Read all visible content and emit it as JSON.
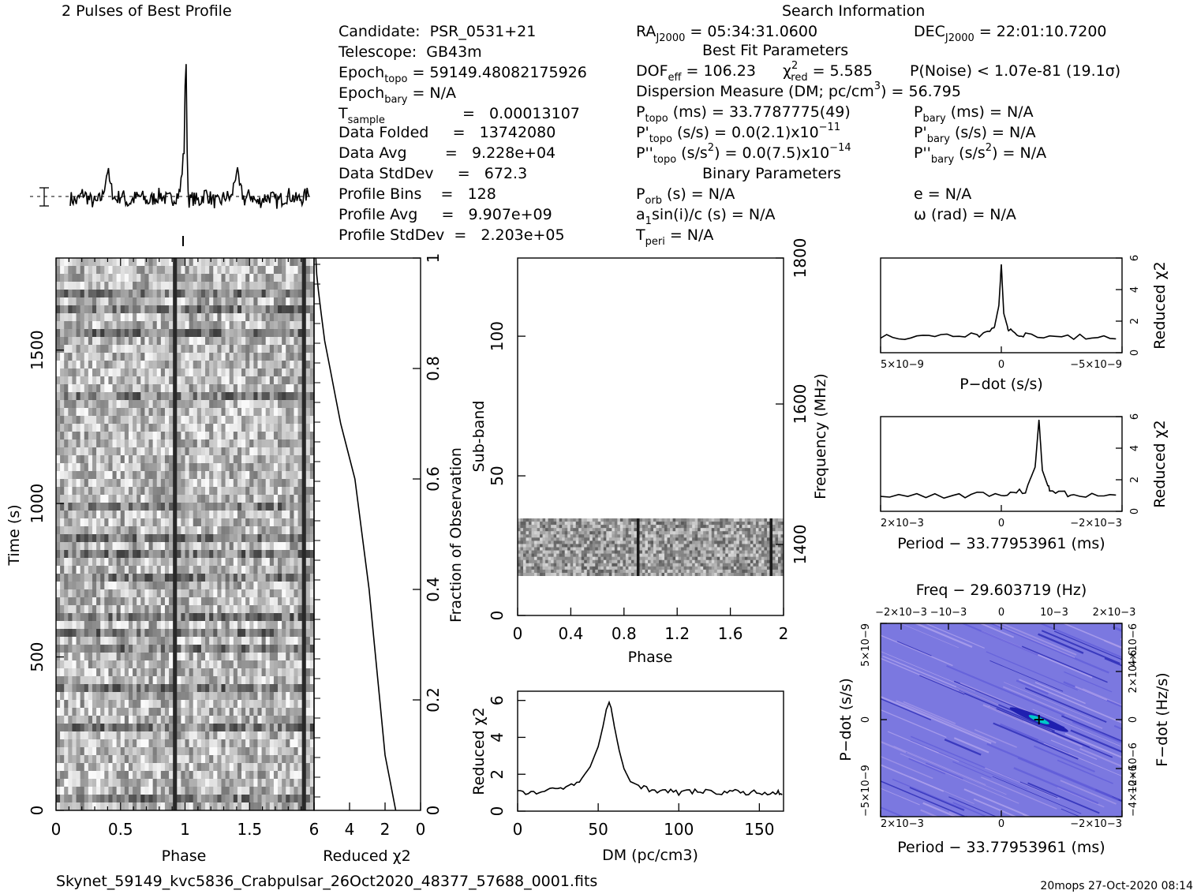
{
  "header": {
    "left_title": "2 Pulses of Best Profile",
    "right_title": "Search Information"
  },
  "info": {
    "candidate": "Candidate:  PSR_0531+21",
    "telescope": "Telescope:  GB43m",
    "epoch_topo_label": "Epoch",
    "epoch_topo_sub": "topo",
    "epoch_topo_value": "= 59149.48082175926",
    "epoch_bary_label": "Epoch",
    "epoch_bary_sub": "bary",
    "epoch_bary_value": "= N/A",
    "t_sample_label": "T",
    "t_sample_sub": "sample",
    "t_sample_value": "=   0.00013107",
    "data_folded": "Data Folded     =   13742080",
    "data_avg": "Data Avg        =   9.228e+04",
    "data_stddev": "Data StdDev     =   672.3",
    "profile_bins": "Profile Bins    =   128",
    "profile_avg": "Profile Avg     =   9.907e+09",
    "profile_stddev": "Profile StdDev  =   2.203e+05",
    "ra_label": "RA",
    "ra_sub": "J2000",
    "ra_value": "= 05:34:31.0600",
    "dec_label": "DEC",
    "dec_sub": "J2000",
    "dec_value": "= 22:01:10.7200",
    "best_fit": "Best Fit Parameters",
    "dof_label": "DOF",
    "dof_sub": "eff",
    "dof_value": "= 106.23",
    "chi_label": "χ",
    "chi_sup": "2",
    "chi_sub": "red",
    "chi_value": "= 5.585",
    "pnoise": "P(Noise) < 1.07e-81   (19.1σ)",
    "dm": "Dispersion Measure (DM; pc/cm",
    "dm_sup": "3",
    "dm_value": ") = 56.795",
    "ptopo_label": "P",
    "ptopo_sub": "topo",
    "ptopo_value": "(ms) =  33.7787775(49)",
    "pbary_label": "P",
    "pbary_sub": "bary",
    "pbary_value": "(ms) = N/A",
    "pdtopo_label": "P'",
    "pdtopo_sub": "topo",
    "pdtopo_value": "(s/s) = 0.0(2.1)x10",
    "pdtopo_exp": "−11",
    "pdbary_label": "P'",
    "pdbary_sub": "bary",
    "pdbary_value": "(s/s) = N/A",
    "pddtopo_label": "P''",
    "pddtopo_sub": "topo",
    "pddtopo_value": "(s/s",
    "pddtopo_sup": "2",
    "pddtopo_value2": ") = 0.0(7.5)x10",
    "pddtopo_exp": "−14",
    "pddbary_label": "P''",
    "pddbary_sub": "bary",
    "pddbary_value": "(s/s",
    "pddbary_sup": "2",
    "pddbary_value2": ") = N/A",
    "binary": "Binary Parameters",
    "porb_label": "P",
    "porb_sub": "orb",
    "porb_value": "(s) = N/A",
    "ecc": "e = N/A",
    "a1_label": "a",
    "a1_sub": "1",
    "a1_value": "sin(i)/c (s) = N/A",
    "omega": "ω (rad) = N/A",
    "tperi_label": "T",
    "tperi_sub": "peri",
    "tperi_value": "= N/A"
  },
  "footer": {
    "filename": "Skynet_59149_kvc5836_Crabpulsar_26Oct2020_48377_57688_0001.fits",
    "stamp": "20mops 27-Oct-2020 08:14"
  },
  "colors": {
    "ink": "#000000",
    "pdot_map": "#7b78e0",
    "pdot_map_dark": "#1f1fb0",
    "pdot_map_light": "#b7a8ee"
  },
  "chart_data": [
    {
      "type": "line",
      "title": "2 Pulses of Best Profile",
      "x": [
        0.0,
        0.05,
        0.1,
        0.15,
        0.2,
        0.25,
        0.29,
        0.31,
        0.35,
        0.4,
        0.45,
        0.5,
        0.55,
        0.6,
        0.65,
        0.7,
        0.75,
        0.8,
        0.85,
        0.885,
        0.895,
        0.905,
        0.915,
        0.925,
        0.95,
        1.0,
        1.05,
        1.1,
        1.15,
        1.2,
        1.25,
        1.29,
        1.31,
        1.35,
        1.4,
        1.45,
        1.5,
        1.55,
        1.6,
        1.65,
        1.7,
        1.75,
        1.8,
        1.85,
        1.885,
        1.895,
        1.905,
        1.915,
        1.925,
        1.95,
        2.0
      ],
      "values": [
        0.05,
        0.03,
        0.08,
        0.04,
        0.02,
        0.06,
        0.22,
        0.12,
        0.04,
        0.07,
        0.02,
        0.05,
        0.06,
        0.03,
        0.05,
        0.07,
        0.04,
        0.05,
        0.08,
        0.35,
        1.0,
        0.4,
        0.06,
        0.03,
        0.05,
        0.03,
        0.08,
        0.04,
        0.02,
        0.06,
        0.05,
        0.22,
        0.12,
        0.04,
        0.07,
        0.02,
        0.05,
        0.06,
        0.03,
        0.05,
        0.07,
        0.04,
        0.05,
        0.08,
        0.35,
        1.0,
        0.4,
        0.06,
        0.03,
        0.05,
        0.03
      ],
      "xlim": [
        0,
        2
      ]
    },
    {
      "type": "heatmap",
      "xlabel": "Phase",
      "ylabel": "Time (s)",
      "x_ticks": [
        "0",
        "0.5",
        "1",
        "1.5"
      ],
      "y_ticks": [
        "0",
        "500",
        "1000",
        "1500"
      ],
      "xlim": [
        0,
        2
      ],
      "ylim": [
        0,
        1800
      ],
      "pulse_phase": [
        0.9,
        1.9
      ]
    },
    {
      "type": "line",
      "xlabel": "Reduced χ2",
      "ylabel": "Fraction of Observation",
      "x_ticks": [
        "6",
        "4",
        "2",
        "0"
      ],
      "y_ticks": [
        "0.2",
        "0.4",
        "0.6",
        "0.8",
        "1"
      ],
      "xlim": [
        6,
        0
      ],
      "ylim": [
        0,
        1
      ],
      "x": [
        1.4,
        1.7,
        2.0,
        2.3,
        2.6,
        2.9,
        3.3,
        3.7,
        4.1,
        4.5,
        4.8,
        5.1,
        5.4,
        5.6,
        5.75,
        5.85,
        5.9
      ],
      "y": [
        0.0,
        0.05,
        0.1,
        0.2,
        0.3,
        0.4,
        0.5,
        0.6,
        0.65,
        0.7,
        0.75,
        0.8,
        0.85,
        0.9,
        0.94,
        0.97,
        1.0
      ]
    },
    {
      "type": "heatmap",
      "xlabel": "Phase",
      "ylabel": "Sub-band",
      "y2label": "Frequency (MHz)",
      "x_ticks": [
        "0",
        "0.4",
        "0.8",
        "1.2",
        "1.6",
        "2"
      ],
      "y_ticks": [
        "0",
        "50",
        "100"
      ],
      "y2_ticks": [
        "1400",
        "1600",
        "1800"
      ],
      "xlim": [
        0,
        2
      ],
      "ylim": [
        0,
        128
      ],
      "band_subbands": [
        14,
        35
      ],
      "pulse_phase": [
        0.9,
        1.9
      ]
    },
    {
      "type": "line",
      "xlabel": "DM (pc/cm3)",
      "ylabel": "Reduced χ2",
      "x_ticks": [
        "0",
        "50",
        "100",
        "150"
      ],
      "y_ticks": [
        "0",
        "2",
        "4",
        "6"
      ],
      "xlim": [
        0,
        165
      ],
      "ylim": [
        0,
        6.5
      ],
      "x": [
        0,
        10,
        20,
        30,
        40,
        45,
        50,
        53,
        55,
        56.8,
        58,
        60,
        63,
        66,
        70,
        80,
        90,
        100,
        110,
        120,
        130,
        140,
        150,
        160,
        165
      ],
      "y": [
        1.0,
        1.0,
        1.1,
        1.3,
        1.8,
        2.4,
        3.5,
        4.6,
        5.5,
        5.9,
        5.6,
        4.6,
        3.3,
        2.3,
        1.6,
        1.2,
        1.1,
        1.0,
        1.1,
        1.0,
        1.05,
        1.0,
        1.0,
        1.0,
        1.0
      ]
    },
    {
      "type": "line",
      "xlabel": "P−dot (s/s)",
      "ylabel": "Reduced χ2",
      "x_ticks": [
        "5×10−9",
        "0",
        "−5×10−9"
      ],
      "y_ticks": [
        "0",
        "2",
        "4",
        "6"
      ],
      "xlim": [
        5e-09,
        -5e-09
      ],
      "ylim": [
        0,
        6
      ],
      "x": [
        5e-09,
        3e-09,
        1e-09,
        3e-10,
        1e-10,
        0,
        -1e-10,
        -3e-10,
        -1e-09,
        -3e-09,
        -5e-09
      ],
      "y": [
        1.0,
        1.0,
        1.1,
        1.5,
        3.0,
        5.6,
        2.5,
        1.4,
        1.1,
        1.0,
        1.0
      ]
    },
    {
      "type": "line",
      "xlabel": "Period − 33.77953961 (ms)",
      "ylabel": "Reduced χ2",
      "x_ticks": [
        "2×10−3",
        "0",
        "−2×10−3"
      ],
      "y_ticks": [
        "0",
        "2",
        "4",
        "6"
      ],
      "xlim": [
        0.0025,
        -0.0025
      ],
      "ylim": [
        0,
        6
      ],
      "x": [
        0.0025,
        0.001,
        0.0,
        -0.0005,
        -0.0007,
        -0.00078,
        -0.00085,
        -0.001,
        -0.0015,
        -0.0025
      ],
      "y": [
        1.0,
        1.0,
        1.1,
        1.3,
        2.8,
        5.8,
        2.6,
        1.3,
        1.0,
        1.0
      ]
    },
    {
      "type": "heatmap",
      "title": "Freq − 29.603719 (Hz)",
      "xlabel": "Period − 33.77953961 (ms)",
      "ylabel": "P−dot (s/s)",
      "y2label": "F−dot (Hz/s)",
      "x_ticks": [
        "2×10−3",
        "0",
        "−2×10−3"
      ],
      "x2_ticks": [
        "−2×10−3",
        "−10−3",
        "0",
        "10−3",
        "2×10−3"
      ],
      "y_ticks": [
        "5×10−9",
        "0",
        "−5×10−9"
      ],
      "y2_ticks": [
        "−4×10−6",
        "−2×10−6",
        "0",
        "2×10−6",
        "4×10−6"
      ],
      "peak": {
        "period": -0.00078,
        "pdot": 0
      }
    }
  ]
}
